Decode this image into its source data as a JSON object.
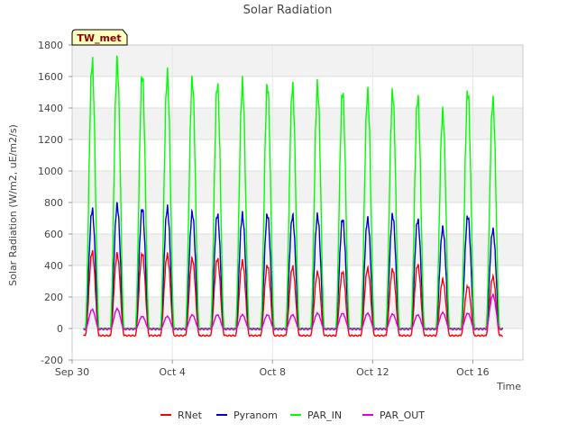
{
  "chart_data": {
    "type": "line",
    "title": "Solar Radiation",
    "xlabel": "Time",
    "ylabel": "Solar Radiation (W/m2, uE/m2/s)",
    "ylim": [
      -200,
      1800
    ],
    "xlim_days": [
      0,
      18
    ],
    "yticks": [
      -200,
      0,
      200,
      400,
      600,
      800,
      1000,
      1200,
      1400,
      1600,
      1800
    ],
    "xticks": [
      {
        "day": 0,
        "label": "Sep 30"
      },
      {
        "day": 4,
        "label": "Oct 4"
      },
      {
        "day": 8,
        "label": "Oct 8"
      },
      {
        "day": 12,
        "label": "Oct 12"
      },
      {
        "day": 16,
        "label": "Oct 16"
      }
    ],
    "grid": true,
    "badge": "TW_met",
    "legend_position": "bottom-center",
    "day_centers": [
      0.8,
      1.8,
      2.8,
      3.8,
      4.8,
      5.8,
      6.8,
      7.8,
      8.8,
      9.8,
      10.8,
      11.8,
      12.8,
      13.8,
      14.8,
      15.8,
      16.8
    ],
    "series": [
      {
        "name": "RNet",
        "color": "#ff0000",
        "night": -45,
        "peaks": [
          505,
          490,
          495,
          485,
          460,
          460,
          440,
          415,
          405,
          370,
          375,
          395,
          390,
          420,
          320,
          280,
          340
        ]
      },
      {
        "name": "Pyranom",
        "color": "#0000cc",
        "night": 0,
        "peaks": [
          780,
          810,
          790,
          790,
          760,
          750,
          745,
          750,
          740,
          740,
          720,
          720,
          745,
          715,
          660,
          740,
          650
        ]
      },
      {
        "name": "PAR_IN",
        "color": "#00ff00",
        "night": 0,
        "peaks": [
          1750,
          1750,
          1670,
          1665,
          1635,
          1605,
          1605,
          1600,
          1595,
          1590,
          1560,
          1550,
          1550,
          1520,
          1420,
          1560,
          1500
        ]
      },
      {
        "name": "PAR_OUT",
        "color": "#dd00dd",
        "night": -5,
        "peaks": [
          125,
          130,
          80,
          80,
          90,
          90,
          90,
          90,
          90,
          100,
          100,
          100,
          95,
          90,
          105,
          100,
          220
        ]
      }
    ]
  }
}
